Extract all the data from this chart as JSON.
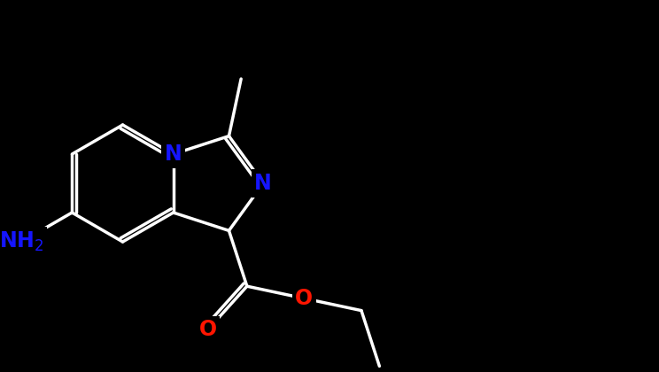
{
  "bg": "#000000",
  "bc": "#ffffff",
  "nc": "#1515ff",
  "oc": "#ff1500",
  "bw": 2.5,
  "fs": 17,
  "xlim": [
    -1,
    11
  ],
  "ylim": [
    -0.5,
    6.5
  ],
  "figsize": [
    7.44,
    4.2
  ],
  "dpi": 100
}
